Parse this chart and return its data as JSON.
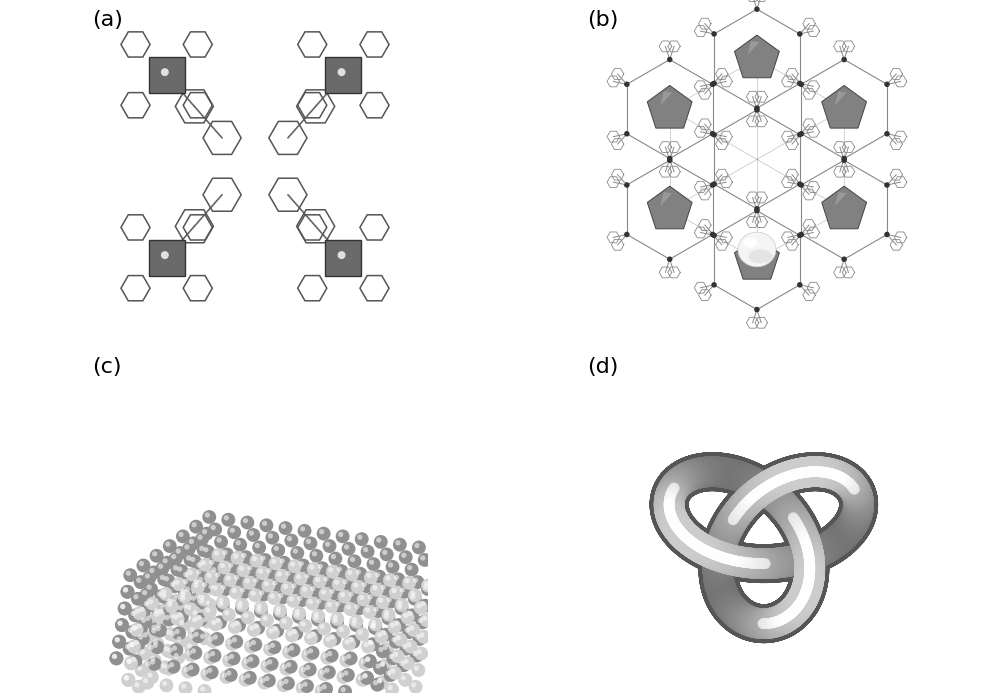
{
  "background_color": "#ffffff",
  "panel_labels": [
    "(a)",
    "(b)",
    "(c)",
    "(d)"
  ],
  "panel_label_fontsize": 16,
  "panel_label_color": "#000000",
  "fig_width": 10.0,
  "fig_height": 6.93,
  "dpi": 100,
  "dark_sphere_color": "#909090",
  "light_sphere_color": "#d0d0d0",
  "knot_dark": "#808080",
  "knot_light": "#c8c8c8",
  "square_color": "#707070",
  "hex_edge_color": "#555555",
  "poly_color": "#888888"
}
